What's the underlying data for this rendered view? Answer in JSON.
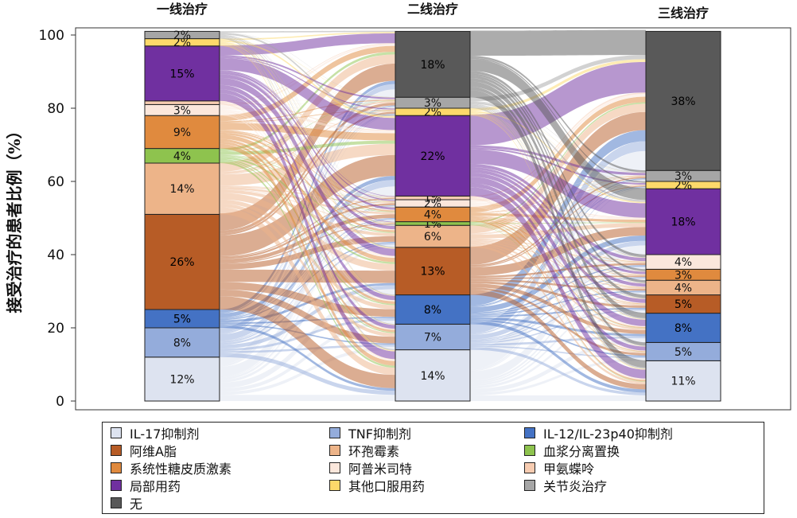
{
  "chart_data": {
    "type": "alluvial",
    "ylabel": "接受治疗的患者比例（%）",
    "ylim": [
      0,
      100
    ],
    "yticks": [
      0,
      20,
      40,
      60,
      80,
      100
    ],
    "stages": [
      "一线治疗",
      "二线治疗",
      "三线治疗"
    ],
    "categories": [
      {
        "name": "IL-17抑制剂",
        "color": "#dde3f0"
      },
      {
        "name": "TNF抑制剂",
        "color": "#94acdb"
      },
      {
        "name": "IL-12/IL-23p40抑制剂",
        "color": "#4472c4"
      },
      {
        "name": "阿维A脂",
        "color": "#b75c26"
      },
      {
        "name": "环孢霉素",
        "color": "#edb489"
      },
      {
        "name": "血浆分离置换",
        "color": "#8ec34e"
      },
      {
        "name": "系统性糖皮质激素",
        "color": "#e08a3e"
      },
      {
        "name": "阿普米司特",
        "color": "#fbe7dc"
      },
      {
        "name": "甲氨蝶呤",
        "color": "#f7ccb1"
      },
      {
        "name": "局部用药",
        "color": "#7030a0"
      },
      {
        "name": "其他口服用药",
        "color": "#fdd96a"
      },
      {
        "name": "关节炎治疗",
        "color": "#a6a6a6"
      },
      {
        "name": "无",
        "color": "#595959"
      }
    ],
    "stacks": [
      {
        "stage": "一线治疗",
        "segments": [
          {
            "cat": "IL-17抑制剂",
            "value": 12,
            "label": "12%"
          },
          {
            "cat": "TNF抑制剂",
            "value": 8,
            "label": "8%"
          },
          {
            "cat": "IL-12/IL-23p40抑制剂",
            "value": 5,
            "label": "5%"
          },
          {
            "cat": "阿维A脂",
            "value": 26,
            "label": "26%"
          },
          {
            "cat": "环孢霉素",
            "value": 14,
            "label": "14%"
          },
          {
            "cat": "血浆分离置换",
            "value": 4,
            "label": "4%"
          },
          {
            "cat": "系统性糖皮质激素",
            "value": 9,
            "label": "9%"
          },
          {
            "cat": "阿普米司特",
            "value": 3,
            "label": "3%"
          },
          {
            "cat": "甲氨蝶呤",
            "value": 1,
            "label": ""
          },
          {
            "cat": "局部用药",
            "value": 15,
            "label": "15%"
          },
          {
            "cat": "其他口服用药",
            "value": 2,
            "label": "2%"
          },
          {
            "cat": "关节炎治疗",
            "value": 2,
            "label": "2%"
          },
          {
            "cat": "无",
            "value": 0,
            "label": ""
          }
        ]
      },
      {
        "stage": "二线治疗",
        "segments": [
          {
            "cat": "IL-17抑制剂",
            "value": 14,
            "label": "14%"
          },
          {
            "cat": "TNF抑制剂",
            "value": 7,
            "label": "7%"
          },
          {
            "cat": "IL-12/IL-23p40抑制剂",
            "value": 8,
            "label": "8%"
          },
          {
            "cat": "阿维A脂",
            "value": 13,
            "label": "13%"
          },
          {
            "cat": "环孢霉素",
            "value": 6,
            "label": "6%"
          },
          {
            "cat": "血浆分离置换",
            "value": 1,
            "label": "1%"
          },
          {
            "cat": "系统性糖皮质激素",
            "value": 4,
            "label": "4%"
          },
          {
            "cat": "阿普米司特",
            "value": 2,
            "label": "2%"
          },
          {
            "cat": "甲氨蝶呤",
            "value": 1,
            "label": "1%"
          },
          {
            "cat": "局部用药",
            "value": 22,
            "label": "22%"
          },
          {
            "cat": "其他口服用药",
            "value": 2,
            "label": "2%"
          },
          {
            "cat": "关节炎治疗",
            "value": 3,
            "label": "3%"
          },
          {
            "cat": "无",
            "value": 18,
            "label": "18%"
          }
        ]
      },
      {
        "stage": "三线治疗",
        "segments": [
          {
            "cat": "IL-17抑制剂",
            "value": 11,
            "label": "11%"
          },
          {
            "cat": "TNF抑制剂",
            "value": 5,
            "label": "5%"
          },
          {
            "cat": "IL-12/IL-23p40抑制剂",
            "value": 8,
            "label": "8%"
          },
          {
            "cat": "阿维A脂",
            "value": 5,
            "label": "5%"
          },
          {
            "cat": "环孢霉素",
            "value": 4,
            "label": "4%"
          },
          {
            "cat": "血浆分离置换",
            "value": 0,
            "label": ""
          },
          {
            "cat": "系统性糖皮质激素",
            "value": 3,
            "label": "3%"
          },
          {
            "cat": "阿普米司特",
            "value": 4,
            "label": "4%"
          },
          {
            "cat": "甲氨蝶呤",
            "value": 0,
            "label": ""
          },
          {
            "cat": "局部用药",
            "value": 18,
            "label": "18%"
          },
          {
            "cat": "其他口服用药",
            "value": 2,
            "label": "2%"
          },
          {
            "cat": "关节炎治疗",
            "value": 3,
            "label": "3%"
          },
          {
            "cat": "无",
            "value": 38,
            "label": "38%"
          }
        ]
      }
    ],
    "legend_order": [
      "IL-17抑制剂",
      "TNF抑制剂",
      "IL-12/IL-23p40抑制剂",
      "阿维A脂",
      "环孢霉素",
      "血浆分离置换",
      "系统性糖皮质激素",
      "阿普米司特",
      "甲氨蝶呤",
      "局部用药",
      "其他口服用药",
      "关节炎治疗",
      "无"
    ],
    "legend_placement": "bottom",
    "grid": false
  }
}
